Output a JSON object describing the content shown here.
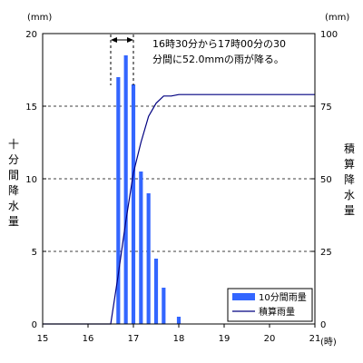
{
  "chart_data": {
    "type": "bar",
    "x_unit": "(時)",
    "y_left_unit": "(mm)",
    "y_right_unit": "(mm)",
    "y_left_title": "十分間降水量",
    "y_right_title": "積算降水量",
    "x_range": [
      15,
      21
    ],
    "x_ticks": [
      "15",
      "16",
      "17",
      "18",
      "19",
      "20",
      "21"
    ],
    "y_left_range": [
      0,
      20
    ],
    "y_left_ticks": [
      "0",
      "5",
      "10",
      "15",
      "20"
    ],
    "y_right_range": [
      0,
      100
    ],
    "y_right_ticks": [
      "0",
      "25",
      "50",
      "75",
      "100"
    ],
    "grid": "horizontal dashed",
    "annotation_lines": [
      "16時30分から17時00分の30",
      "分間に52.0mmの雨が降る。"
    ],
    "annotation_span": [
      "16:30",
      "17:00"
    ],
    "series": [
      {
        "name": "10分間雨量",
        "type": "bar",
        "axis": "left",
        "color": "#3366ff",
        "x": [
          "16:40",
          "16:50",
          "17:00",
          "17:10",
          "17:20",
          "17:30",
          "17:40",
          "18:00"
        ],
        "values": [
          17.0,
          18.5,
          16.5,
          10.5,
          9.0,
          4.5,
          2.5,
          0.5
        ]
      },
      {
        "name": "積算雨量",
        "type": "line",
        "axis": "right",
        "color": "#000080",
        "x": [
          "15:00",
          "16:30",
          "16:40",
          "16:50",
          "17:00",
          "17:10",
          "17:20",
          "17:30",
          "17:40",
          "17:50",
          "18:00",
          "21:00"
        ],
        "values": [
          0,
          0,
          17.0,
          35.5,
          52.0,
          62.5,
          71.5,
          76.0,
          78.5,
          78.5,
          79.0,
          79.0
        ]
      }
    ],
    "legend": {
      "position": "bottom-right",
      "items": [
        "10分間雨量",
        "積算雨量"
      ]
    }
  }
}
